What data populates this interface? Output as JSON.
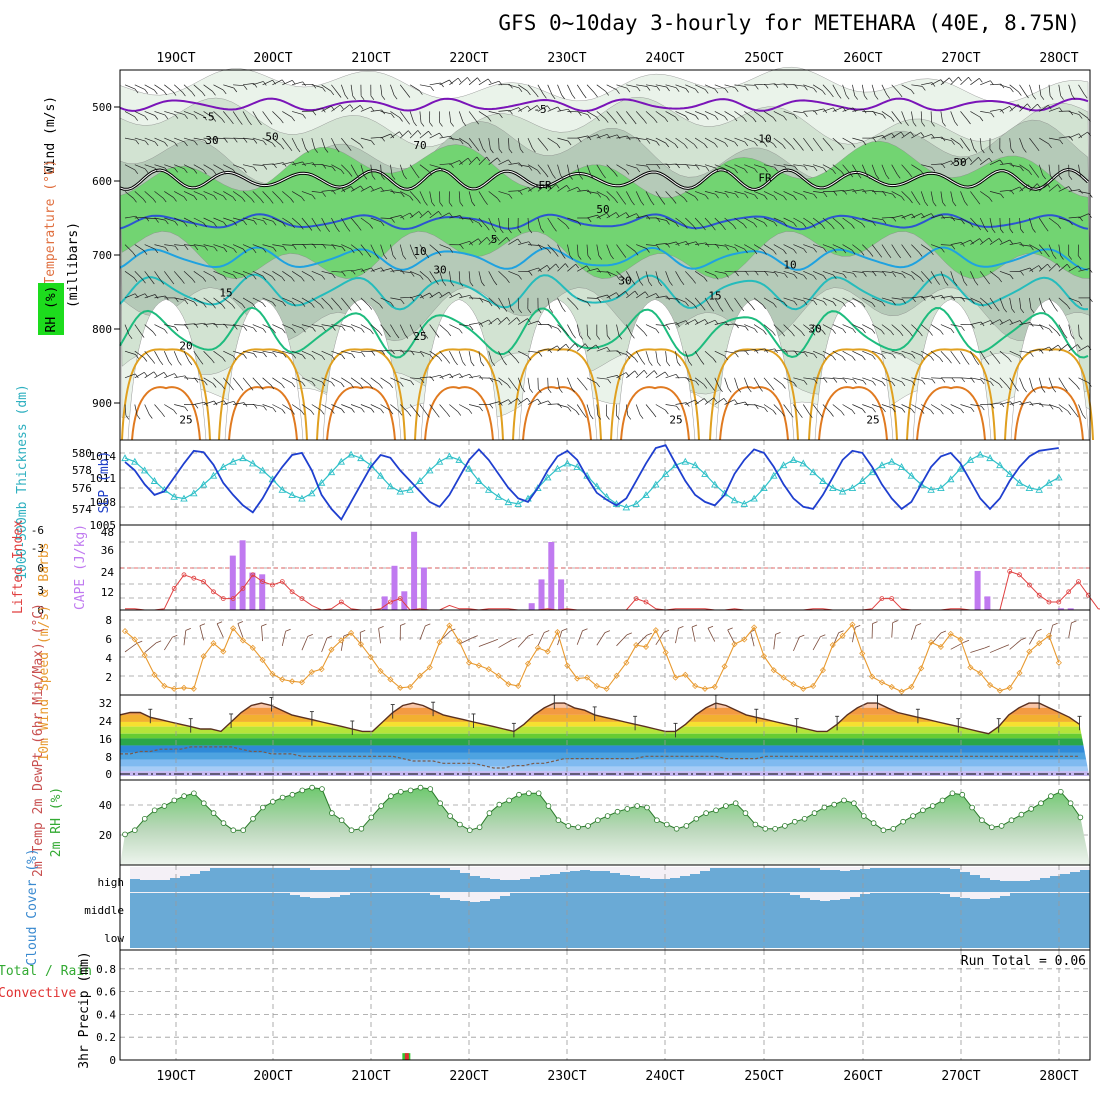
{
  "title": "GFS 0~10day 3-hourly for METEHARA (40E, 8.75N)",
  "colors": {
    "rh1": "#eaf3ea",
    "rh2": "#d2e3d2",
    "rh3": "#b5cab8",
    "rh4": "#72d472",
    "rh5": "#1ddc1d",
    "temp5": "#7a14b8",
    "temp_neg": "#8a40c8",
    "temp10": "#2c55d0",
    "temp15": "#1fa2e0",
    "temp20": "#25bcbc",
    "temp25": "#1ebc7e",
    "temp30": "#e0a020",
    "temp35": "#e07a20",
    "fr": "#000000",
    "slp": "#1f3fcf",
    "thick": "#2fc0c8",
    "cape": "#c07af0",
    "li": "#e04040",
    "wind": "#e89a30",
    "barb": "#7a4a3a",
    "rh2m": "#66c566",
    "cloud": "#6aaad6",
    "cloud_bg": "#f4f0f6",
    "precip_total": "#33cc33",
    "precip_conv": "#e03030"
  },
  "chart_data": [
    {
      "panel": "upper-air",
      "type": "contour",
      "x": [
        "19OCT",
        "20OCT",
        "21OCT",
        "22OCT",
        "23OCT",
        "24OCT",
        "25OCT",
        "26OCT",
        "27OCT",
        "28OCT"
      ],
      "ylabel_parts": [
        "RH (%)",
        "Temperature (°C)",
        "Wind (m/s)"
      ],
      "ylabel_units": "(millibars)",
      "yticks": [
        500,
        600,
        700,
        800,
        900
      ],
      "ylim": [
        450,
        950
      ],
      "contour_labels": [
        "-5",
        "-5",
        "5",
        "10",
        "10",
        "15",
        "15",
        "20",
        "25",
        "25",
        "25",
        "25",
        "FR",
        "FR",
        "10",
        "30",
        "30",
        "30",
        "30",
        "50",
        "50",
        "70",
        "50"
      ],
      "rh_levels": [
        10,
        30,
        50,
        70,
        90
      ]
    },
    {
      "panel": "slp-thickness",
      "type": "line",
      "ylabel_left": "1000-500mb Thickness (dm)",
      "ylabel_right": "SLP (mb)",
      "yticks_left": [
        "580",
        "578",
        "576",
        "574"
      ],
      "yticks_right": [
        "1014",
        "1011",
        "1008",
        "1005"
      ],
      "series": [
        {
          "name": "SLP (mb)",
          "values": [
            1013.2,
            1012.0,
            1010.0,
            1008.5,
            1009.0,
            1011.0,
            1013.0,
            1014.8,
            1014.6,
            1012.8,
            1010.2,
            1008.5,
            1007.0,
            1006.0,
            1008.0,
            1010.5,
            1012.5,
            1014.2,
            1014.5,
            1012.0,
            1008.5,
            1006.5,
            1005.0,
            1007.5,
            1010.0,
            1012.5,
            1014.2,
            1013.8,
            1012.0,
            1010.5,
            1009.0,
            1007.5,
            1006.8,
            1008.5,
            1011.0,
            1013.5,
            1015.0,
            1013.5,
            1011.5,
            1009.5,
            1008.0,
            1007.5,
            1009.5,
            1012.0,
            1014.0,
            1014.8,
            1013.5,
            1011.0,
            1008.8,
            1007.8,
            1007.0,
            1008.0,
            1010.5,
            1013.0,
            1015.2,
            1015.6,
            1013.0,
            1010.5,
            1008.5,
            1007.5,
            1007.0,
            1008.5,
            1011.5,
            1013.5,
            1015.0,
            1014.5,
            1012.5,
            1010.0,
            1008.0,
            1006.8,
            1006.5,
            1008.5,
            1011.0,
            1013.5,
            1014.8,
            1014.5,
            1012.5,
            1010.0,
            1008.0,
            1006.5,
            1007.5,
            1010.0,
            1012.5,
            1014.0,
            1014.5,
            1013.0,
            1010.5,
            1008.0,
            1006.5,
            1008.0,
            1010.5,
            1012.5,
            1014.0,
            1014.8,
            1015.0,
            1015.2
          ]
        },
        {
          "name": "1000-500mb Thickness (dm)",
          "values": [
            579.6,
            579.2,
            578.2,
            577.0,
            576.0,
            575.2,
            575.0,
            575.6,
            576.6,
            577.6,
            578.6,
            579.2,
            579.6,
            579.0,
            578.2,
            577.2,
            576.0,
            575.4,
            575.0,
            575.6,
            576.8,
            578.0,
            579.2,
            580.0,
            579.6,
            578.8,
            577.6,
            576.4,
            575.8,
            576.0,
            577.0,
            578.2,
            579.2,
            579.8,
            579.4,
            578.4,
            577.0,
            576.0,
            575.2,
            574.6,
            574.4,
            575.0,
            576.2,
            577.4,
            578.4,
            579.0,
            578.6,
            577.6,
            576.4,
            575.2,
            574.4,
            574.0,
            574.4,
            575.4,
            576.6,
            577.8,
            578.8,
            579.2,
            578.8,
            577.8,
            576.6,
            575.6,
            574.8,
            574.4,
            575.0,
            576.2,
            577.6,
            578.8,
            579.4,
            579.0,
            578.0,
            577.0,
            576.2,
            575.8,
            576.2,
            577.0,
            578.0,
            578.8,
            579.2,
            578.6,
            577.6,
            576.6,
            576.0,
            576.2,
            577.2,
            578.4,
            579.4,
            580.0,
            579.6,
            578.8,
            577.8,
            576.8,
            576.2,
            576.0,
            576.8,
            577.4
          ]
        }
      ]
    },
    {
      "panel": "cape-li",
      "type": "bar",
      "ylabel_left": "Lifted Index",
      "ylabel_right": "CAPE (J/kg)",
      "yticks_left": [
        "-6",
        "-3",
        "0",
        "3",
        "6"
      ],
      "yticks_right": [
        "48",
        "36",
        "24",
        "12"
      ],
      "cape_bars": [
        {
          "i": 22,
          "v": 32
        },
        {
          "i": 24,
          "v": 41
        },
        {
          "i": 26,
          "v": 22
        },
        {
          "i": 28,
          "v": 21
        },
        {
          "i": 53,
          "v": 8
        },
        {
          "i": 55,
          "v": 26
        },
        {
          "i": 57,
          "v": 11
        },
        {
          "i": 59,
          "v": 46
        },
        {
          "i": 61,
          "v": 25
        },
        {
          "i": 83,
          "v": 4
        },
        {
          "i": 85,
          "v": 18
        },
        {
          "i": 87,
          "v": 40
        },
        {
          "i": 89,
          "v": 18
        },
        {
          "i": 174,
          "v": 23
        },
        {
          "i": 176,
          "v": 8
        },
        {
          "i": 191,
          "v": 1
        },
        {
          "i": 193,
          "v": 1
        }
      ],
      "series": [
        {
          "name": "Lifted Index",
          "values": [
            6.0,
            6.0,
            6.5,
            6.5,
            6.0,
            3.0,
            1.0,
            1.5,
            2.0,
            3.5,
            4.5,
            4.5,
            3.0,
            1.0,
            2.0,
            2.5,
            2.0,
            3.5,
            4.5,
            5.5,
            6.5,
            6.0,
            5.0,
            6.0,
            6.5,
            6.5,
            6.0,
            5.0,
            4.5,
            6.5,
            6.0,
            6.5,
            6.5,
            5.5,
            6.0,
            6.0,
            6.5,
            6.0,
            6.0,
            6.0,
            6.5,
            6.5,
            6.5,
            6.0,
            6.5,
            6.0,
            6.5,
            6.5,
            6.5,
            6.5,
            6.5,
            6.5,
            4.5,
            5.0,
            6.0,
            6.5,
            6.0,
            6.0,
            6.0,
            6.0,
            6.5,
            6.5,
            6.0,
            6.5,
            6.5,
            6.5,
            6.5,
            6.5,
            6.5,
            6.5,
            6.0,
            6.0,
            6.5,
            6.5,
            6.5,
            6.5,
            6.0,
            4.5,
            4.5,
            6.0,
            6.5,
            6.5,
            6.5,
            6.5,
            6.0,
            6.0,
            6.5,
            6.5,
            6.5,
            6.5,
            0.5,
            1.0,
            2.5,
            4.0,
            5.0,
            5.0,
            3.5,
            2.0,
            4.0,
            6.0,
            6.5,
            5.0
          ]
        }
      ]
    },
    {
      "panel": "wind10m",
      "type": "line",
      "ylabel": "10m Wind Speed (m/s) & Barbs",
      "yticks": [
        "8",
        "6",
        "4",
        "2"
      ],
      "series": [
        {
          "name": "10m Wind Speed (m/s)",
          "values": [
            7.3,
            6.4,
            4.7,
            2.6,
            1.4,
            1.1,
            1.2,
            1.1,
            4.6,
            6.0,
            5.1,
            7.6,
            6.3,
            5.5,
            4.2,
            2.7,
            2.1,
            1.9,
            1.8,
            2.9,
            3.2,
            5.3,
            6.3,
            7.1,
            5.9,
            4.5,
            3.0,
            2.1,
            1.2,
            1.3,
            2.5,
            3.4,
            6.1,
            7.9,
            6.2,
            3.9,
            3.6,
            3.2,
            2.5,
            1.6,
            1.4,
            3.8,
            5.5,
            5.1,
            7.2,
            3.6,
            2.2,
            2.3,
            1.4,
            1.1,
            2.5,
            3.9,
            5.8,
            5.6,
            7.4,
            5.0,
            2.3,
            2.6,
            1.4,
            1.1,
            1.3,
            3.5,
            5.9,
            6.4,
            7.7,
            4.6,
            3.1,
            2.3,
            1.6,
            1.1,
            1.4,
            3.1,
            5.8,
            6.8,
            8.0,
            4.9,
            2.4,
            1.8,
            1.3,
            0.8,
            1.3,
            3.3,
            6.1,
            5.6,
            7.0,
            6.4,
            3.4,
            2.8,
            1.5,
            0.9,
            1.2,
            2.8,
            5.1,
            6.0,
            6.8,
            3.9
          ]
        }
      ]
    },
    {
      "panel": "temp2m",
      "type": "area",
      "ylabel": "2m Temp 2m DewPt (6hr Min/Max) (°C)",
      "yticks": [
        "32",
        "24",
        "16",
        "8",
        "0"
      ],
      "series": [
        {
          "name": "2m Temp (°C)",
          "values": [
            26,
            27,
            27,
            25,
            24,
            23,
            22,
            21,
            20,
            20,
            19,
            23,
            27,
            30,
            31,
            30,
            28,
            26,
            25,
            24,
            23,
            22,
            21,
            20,
            19,
            19,
            23,
            27,
            30,
            31,
            30,
            28,
            26,
            25,
            24,
            23,
            22,
            21,
            20,
            19,
            22,
            26,
            29,
            31,
            31,
            29,
            28,
            26,
            25,
            24,
            23,
            22,
            21,
            20,
            19,
            19,
            22,
            26,
            29,
            31,
            30,
            28,
            26,
            25,
            24,
            23,
            22,
            21,
            20,
            19,
            19,
            22,
            26,
            29,
            31,
            31,
            29,
            27,
            26,
            25,
            24,
            23,
            22,
            21,
            20,
            19,
            18,
            21,
            26,
            29,
            31,
            31,
            29,
            27,
            25,
            22
          ]
        },
        {
          "name": "2m DewPt (°C)",
          "values": [
            6,
            6,
            7,
            7,
            8,
            8,
            8,
            9,
            9,
            9,
            9,
            9,
            8,
            7,
            7,
            6,
            6,
            6,
            5,
            5,
            5,
            5,
            5,
            5,
            5,
            5,
            5,
            5,
            4,
            3,
            3,
            3,
            2,
            2,
            2,
            2,
            1,
            0,
            0,
            1,
            1,
            2,
            2,
            3,
            4,
            4,
            4,
            4,
            4,
            4,
            4,
            4,
            5,
            5,
            5,
            5,
            5,
            5,
            5,
            5,
            4,
            4,
            4,
            4,
            5,
            5,
            5,
            5,
            5,
            5,
            5,
            5,
            5,
            5,
            5,
            5,
            5,
            5,
            5,
            5,
            5,
            5,
            5,
            5,
            5,
            5,
            5,
            5,
            5,
            5,
            5,
            5,
            5,
            5,
            5,
            5
          ]
        }
      ]
    },
    {
      "panel": "rh2m",
      "type": "area",
      "ylabel": "2m RH (%)",
      "yticks": [
        "40",
        "20"
      ],
      "series": [
        {
          "name": "2m RH (%)",
          "values": [
            18,
            21,
            29,
            35,
            38,
            42,
            45,
            47,
            40,
            33,
            26,
            21,
            21,
            29,
            37,
            41,
            44,
            46,
            49,
            51,
            50,
            33,
            28,
            21,
            22,
            30,
            38,
            45,
            48,
            49,
            51,
            50,
            40,
            31,
            25,
            21,
            23,
            33,
            39,
            42,
            46,
            47,
            47,
            38,
            28,
            24,
            23,
            24,
            28,
            31,
            34,
            36,
            38,
            37,
            28,
            25,
            22,
            24,
            29,
            33,
            35,
            38,
            40,
            33,
            25,
            22,
            22,
            24,
            27,
            29,
            33,
            37,
            39,
            42,
            40,
            31,
            26,
            21,
            22,
            27,
            31,
            35,
            38,
            42,
            47,
            46,
            37,
            28,
            23,
            24,
            28,
            32,
            36,
            40,
            45,
            48,
            40,
            30
          ]
        }
      ]
    },
    {
      "panel": "cloud",
      "type": "area",
      "ylabel": "Cloud Cover (%)",
      "levels": [
        "high",
        "middle",
        "low"
      ]
    },
    {
      "panel": "precip",
      "type": "bar",
      "ylabel_left": "Total / Rain",
      "ylabel_left2": "Convective",
      "ylabel": "3hr Precip (mm)",
      "yticks": [
        "0.8",
        "0.6",
        "0.4",
        "0.2",
        "0"
      ],
      "ylim": [
        0,
        0.9
      ],
      "bars": [
        {
          "i": 85,
          "total": 0.06,
          "convective": 0.06
        }
      ],
      "run_total_label": "Run Total = 0.06"
    }
  ]
}
